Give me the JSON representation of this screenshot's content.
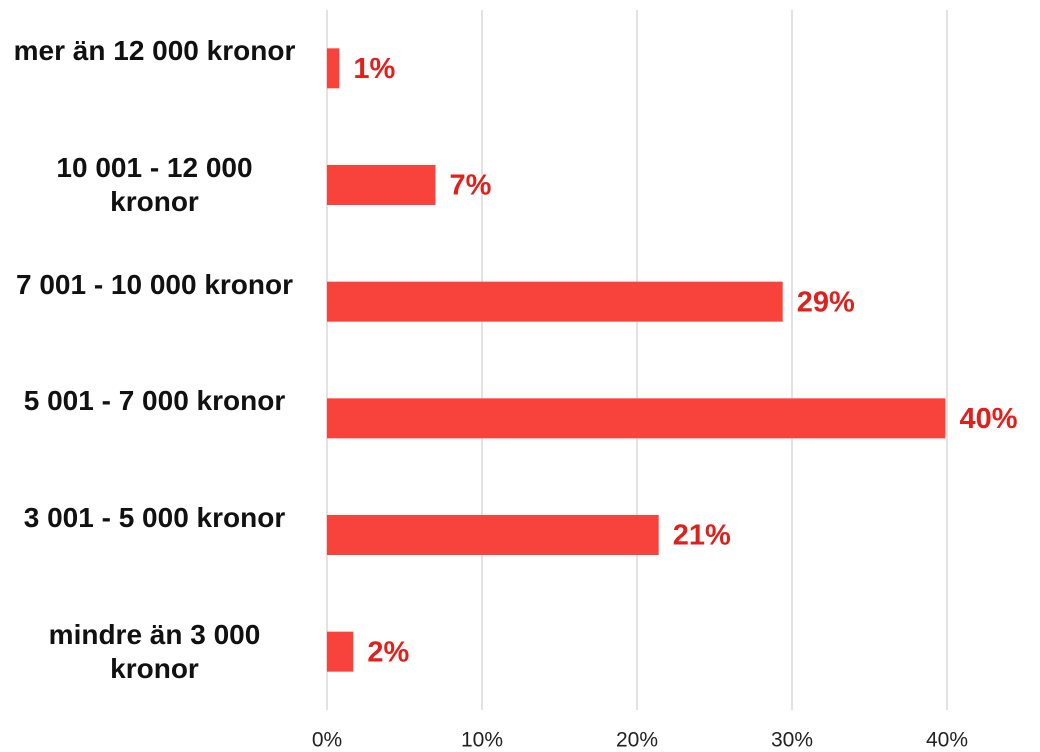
{
  "chart_data": {
    "type": "barh",
    "categories": [
      "mer än 12 000 kronor",
      "10 001 - 12 000 kronor",
      "7 001 - 10 000 kronor",
      "5 001 - 7 000 kronor",
      "3 001 - 5 000 kronor",
      "mindre än 3 000 kronor"
    ],
    "values": [
      0.8,
      7,
      29.4,
      39.9,
      21.4,
      1.7
    ],
    "value_labels": [
      "1%",
      "7%",
      "29%",
      "40%",
      "21%",
      "2%"
    ],
    "color": "#f8423c",
    "label_color": "#e0201b",
    "xlim": [
      0,
      40
    ],
    "xticks": [
      {
        "value": 0,
        "label": "0%"
      },
      {
        "value": 10,
        "label": "10%"
      },
      {
        "value": 20,
        "label": "20%"
      },
      {
        "value": 30,
        "label": "30%"
      },
      {
        "value": 40,
        "label": "40%"
      }
    ],
    "grid": true
  }
}
